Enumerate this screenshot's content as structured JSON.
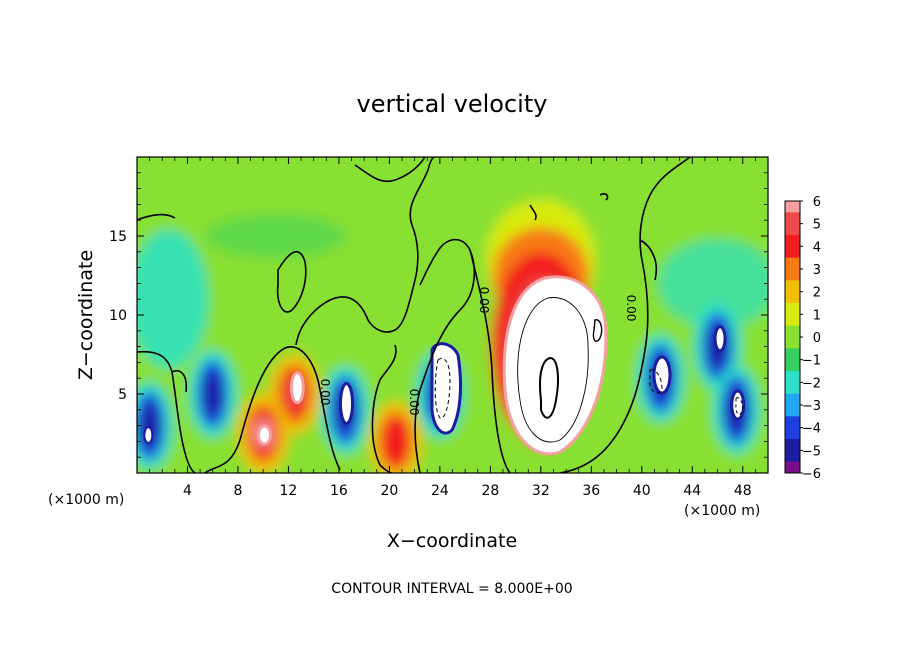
{
  "chart_data": {
    "type": "heatmap",
    "title": "vertical velocity",
    "xlabel": "X−coordinate",
    "ylabel": "Z−coordinate",
    "x_unit_left": "(×1000 m)",
    "x_unit_right": "(×1000 m)",
    "footer": "CONTOUR INTERVAL = 8.000E+00",
    "xlim": [
      0,
      50
    ],
    "ylim": [
      0,
      20
    ],
    "x_ticks": [
      4,
      8,
      12,
      16,
      20,
      24,
      28,
      32,
      36,
      40,
      44,
      48
    ],
    "y_ticks": [
      5,
      10,
      15
    ],
    "colorbar": {
      "levels": [
        6,
        5,
        4,
        3,
        2,
        1,
        0,
        -1,
        -2,
        -3,
        -4,
        -5,
        -6
      ],
      "labels": [
        "6",
        "5",
        "4",
        "3",
        "2",
        "1",
        "0",
        "−1",
        "−2",
        "−3",
        "−4",
        "−5",
        "−6"
      ],
      "colors": [
        "#f4a0a0",
        "#ef4a4a",
        "#f21e1e",
        "#f77a12",
        "#f0c000",
        "#d8ea10",
        "#88e030",
        "#36d060",
        "#2ce0c8",
        "#20a8f0",
        "#1e40e0",
        "#1c1ca0",
        "#78108c"
      ]
    },
    "contour_label": "0.00",
    "field_features": [
      {
        "kind": "updraft",
        "x": 32,
        "z": 6,
        "max_value": 6,
        "note": "strong core exceeding colorbar range"
      },
      {
        "kind": "updraft",
        "x": 12.5,
        "z": 5,
        "max_value": 5
      },
      {
        "kind": "updraft",
        "x": 10,
        "z": 2.5,
        "max_value": 6
      },
      {
        "kind": "updraft",
        "x": 20.5,
        "z": 2,
        "max_value": 4
      },
      {
        "kind": "downdraft",
        "x": 24,
        "z": 5,
        "min_value": -6
      },
      {
        "kind": "downdraft",
        "x": 16.5,
        "z": 4,
        "min_value": -6
      },
      {
        "kind": "downdraft",
        "x": 6,
        "z": 5,
        "min_value": -5
      },
      {
        "kind": "downdraft",
        "x": 41.5,
        "z": 6,
        "min_value": -6
      },
      {
        "kind": "downdraft",
        "x": 46,
        "z": 8,
        "min_value": -6
      },
      {
        "kind": "downdraft",
        "x": 47.5,
        "z": 4,
        "min_value": -6
      },
      {
        "kind": "downdraft",
        "x": 1,
        "z": 3,
        "min_value": -6
      }
    ]
  }
}
